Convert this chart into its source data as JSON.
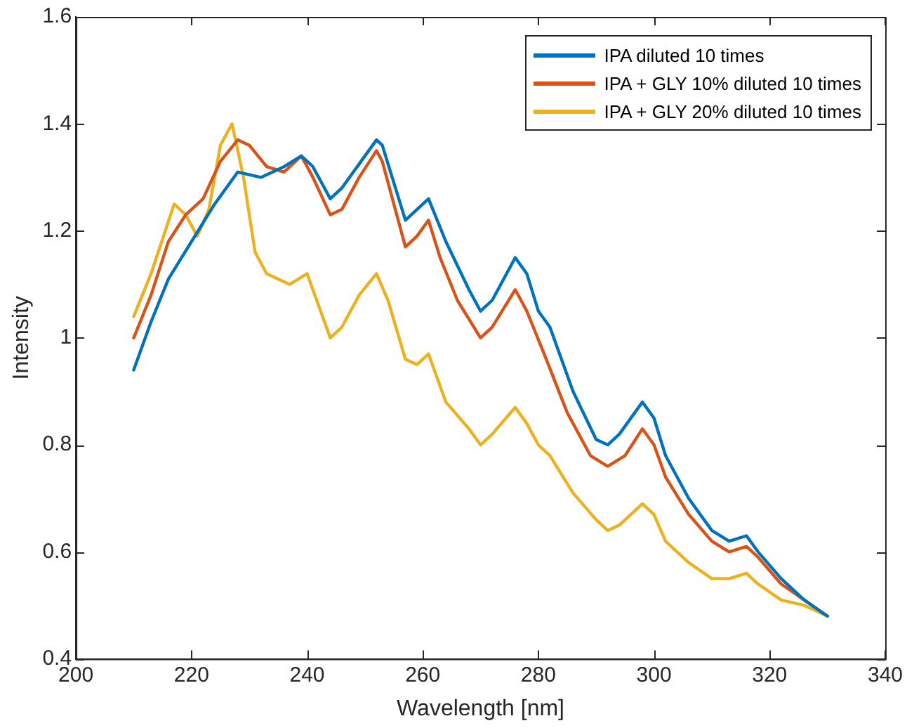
{
  "chart_data": {
    "type": "line",
    "xlabel": "Wavelength [nm]",
    "ylabel": "Intensity",
    "xlim": [
      200,
      340
    ],
    "xticks": [
      200,
      220,
      240,
      260,
      280,
      300,
      320,
      340
    ],
    "ylim": [
      0.4,
      1.6
    ],
    "yticks": [
      0.4,
      0.6,
      0.8,
      1,
      1.2,
      1.4,
      1.6
    ],
    "grid": false,
    "legend": "top right",
    "marker": "none",
    "line_style": "solid",
    "series": [
      {
        "name": "IPA diluted 10 times",
        "color": "#0072bd",
        "x": [
          210,
          213,
          216,
          220,
          224,
          228,
          232,
          236,
          239,
          241,
          244,
          246,
          248,
          252,
          253,
          257,
          261,
          264,
          268,
          270,
          272,
          276,
          278,
          280,
          282,
          286,
          290,
          292,
          294,
          298,
          300,
          302,
          306,
          310,
          313,
          316,
          318,
          322,
          326,
          330
        ],
        "values": [
          0.94,
          1.03,
          1.11,
          1.18,
          1.25,
          1.31,
          1.3,
          1.32,
          1.34,
          1.32,
          1.26,
          1.28,
          1.31,
          1.37,
          1.36,
          1.22,
          1.26,
          1.18,
          1.09,
          1.05,
          1.07,
          1.15,
          1.12,
          1.05,
          1.02,
          0.9,
          0.81,
          0.8,
          0.82,
          0.88,
          0.85,
          0.78,
          0.7,
          0.64,
          0.62,
          0.63,
          0.6,
          0.55,
          0.51,
          0.48
        ]
      },
      {
        "name": "IPA + GLY 10% diluted 10 times",
        "color": "#d95319",
        "x": [
          210,
          213,
          216,
          219,
          222,
          225,
          228,
          230,
          233,
          236,
          239,
          241,
          244,
          246,
          249,
          252,
          253,
          257,
          259,
          261,
          263,
          266,
          270,
          272,
          276,
          278,
          281,
          285,
          289,
          292,
          295,
          298,
          300,
          302,
          306,
          310,
          313,
          316,
          318,
          322,
          326,
          330
        ],
        "values": [
          1.0,
          1.08,
          1.18,
          1.23,
          1.26,
          1.33,
          1.37,
          1.36,
          1.32,
          1.31,
          1.34,
          1.3,
          1.23,
          1.24,
          1.3,
          1.35,
          1.33,
          1.17,
          1.19,
          1.22,
          1.15,
          1.07,
          1.0,
          1.02,
          1.09,
          1.05,
          0.97,
          0.86,
          0.78,
          0.76,
          0.78,
          0.83,
          0.8,
          0.74,
          0.67,
          0.62,
          0.6,
          0.61,
          0.59,
          0.54,
          0.51,
          0.48
        ]
      },
      {
        "name": "IPA + GLY 20% diluted 10 times",
        "color": "#edb120",
        "x": [
          210,
          213,
          217,
          219,
          221,
          223,
          225,
          227,
          229,
          231,
          233,
          237,
          240,
          242,
          244,
          246,
          249,
          252,
          254,
          257,
          259,
          261,
          264,
          268,
          270,
          272,
          276,
          278,
          280,
          282,
          286,
          290,
          292,
          294,
          298,
          300,
          302,
          306,
          310,
          313,
          316,
          318,
          322,
          326,
          330
        ],
        "values": [
          1.04,
          1.12,
          1.25,
          1.23,
          1.19,
          1.24,
          1.36,
          1.4,
          1.3,
          1.16,
          1.12,
          1.1,
          1.12,
          1.06,
          1.0,
          1.02,
          1.08,
          1.12,
          1.07,
          0.96,
          0.95,
          0.97,
          0.88,
          0.83,
          0.8,
          0.82,
          0.87,
          0.84,
          0.8,
          0.78,
          0.71,
          0.66,
          0.64,
          0.65,
          0.69,
          0.67,
          0.62,
          0.58,
          0.55,
          0.55,
          0.56,
          0.54,
          0.51,
          0.5,
          0.48
        ]
      }
    ]
  }
}
